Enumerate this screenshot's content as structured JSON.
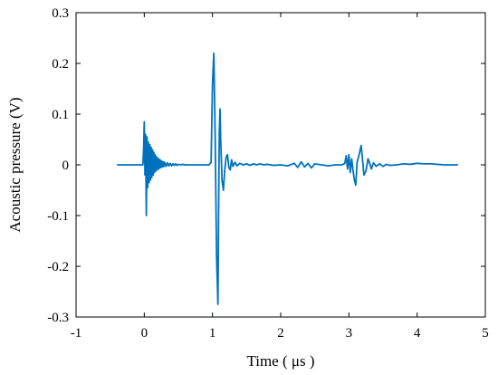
{
  "chart_data": {
    "type": "line",
    "title": "",
    "xlabel": "Time ( μs )",
    "ylabel": "Acoustic pressure (V)",
    "xlim": [
      -1,
      5
    ],
    "ylim": [
      -0.3,
      0.3
    ],
    "xticks": [
      -1,
      0,
      1,
      2,
      3,
      4,
      5
    ],
    "yticks": [
      -0.3,
      -0.2,
      -0.1,
      0,
      0.1,
      0.2,
      0.3
    ],
    "xtick_labels": [
      "-1",
      "0",
      "1",
      "2",
      "3",
      "4",
      "5"
    ],
    "ytick_labels": [
      "-0.3",
      "-0.2",
      "-0.1",
      "0",
      "0.1",
      "0.2",
      "0.3"
    ],
    "grid": false,
    "line_color": "#0072BD",
    "series": [
      {
        "x": [
          -0.4,
          -0.02,
          -0.01,
          0.0,
          0.01,
          0.02,
          0.03,
          0.04,
          0.05,
          0.06,
          0.07,
          0.08,
          0.09,
          0.1,
          0.11,
          0.12,
          0.13,
          0.14,
          0.15,
          0.16,
          0.17,
          0.18,
          0.19,
          0.2,
          0.21,
          0.22,
          0.23,
          0.24,
          0.25,
          0.26,
          0.27,
          0.28,
          0.29,
          0.3,
          0.32,
          0.34,
          0.36,
          0.38,
          0.4,
          0.42,
          0.44,
          0.46,
          0.48,
          0.5,
          0.53,
          0.56,
          0.6,
          0.65,
          0.7,
          0.75,
          0.8,
          0.85,
          0.9,
          0.95,
          0.98,
          1.0,
          1.02,
          1.04,
          1.06,
          1.08,
          1.09,
          1.1,
          1.11,
          1.12,
          1.14,
          1.16,
          1.18,
          1.2,
          1.22,
          1.24,
          1.26,
          1.28,
          1.3,
          1.33,
          1.36,
          1.4,
          1.45,
          1.5,
          1.55,
          1.6,
          1.65,
          1.7,
          1.75,
          1.8,
          1.85,
          1.9,
          2.0,
          2.1,
          2.2,
          2.25,
          2.3,
          2.35,
          2.4,
          2.45,
          2.5,
          2.6,
          2.7,
          2.8,
          2.9,
          2.94,
          2.96,
          2.98,
          3.0,
          3.02,
          3.04,
          3.06,
          3.08,
          3.1,
          3.12,
          3.15,
          3.18,
          3.2,
          3.22,
          3.25,
          3.28,
          3.3,
          3.33,
          3.36,
          3.4,
          3.45,
          3.5,
          3.55,
          3.6,
          3.7,
          3.8,
          3.9,
          4.0,
          4.1,
          4.2,
          4.3,
          4.4,
          4.5,
          4.6
        ],
        "y": [
          0.0,
          0.0,
          0.03,
          0.085,
          -0.02,
          0.06,
          -0.1,
          0.055,
          -0.045,
          0.045,
          -0.035,
          0.04,
          -0.03,
          0.035,
          -0.025,
          0.03,
          -0.02,
          0.025,
          -0.015,
          0.02,
          -0.012,
          0.016,
          -0.01,
          0.013,
          -0.008,
          0.011,
          -0.006,
          0.009,
          -0.005,
          0.007,
          -0.004,
          0.006,
          -0.003,
          0.005,
          -0.003,
          0.004,
          -0.002,
          0.003,
          -0.002,
          0.002,
          -0.001,
          0.002,
          -0.001,
          0.001,
          0.0,
          0.001,
          0.0,
          0.0,
          0.0,
          0.0,
          0.0,
          0.0,
          0.0,
          0.0,
          0.005,
          0.16,
          0.22,
          0.05,
          -0.18,
          -0.275,
          -0.08,
          0.06,
          0.11,
          0.05,
          -0.03,
          -0.05,
          -0.01,
          0.015,
          0.02,
          -0.005,
          -0.01,
          0.01,
          -0.003,
          0.005,
          -0.002,
          0.003,
          0.0,
          0.002,
          -0.001,
          0.002,
          0.0,
          0.002,
          0.0,
          0.001,
          0.0,
          -0.001,
          0.0,
          -0.002,
          0.003,
          -0.005,
          0.006,
          -0.004,
          0.003,
          -0.006,
          0.002,
          0.0,
          -0.002,
          0.0,
          0.0,
          0.003,
          0.018,
          -0.008,
          0.02,
          -0.015,
          0.012,
          -0.01,
          -0.03,
          -0.04,
          0.005,
          0.02,
          0.038,
          0.01,
          -0.02,
          -0.012,
          0.012,
          0.005,
          -0.008,
          0.004,
          -0.003,
          0.002,
          -0.003,
          0.001,
          -0.001,
          0.0,
          0.002,
          0.001,
          0.003,
          0.002,
          0.002,
          0.001,
          0.0,
          0.0,
          0.0
        ]
      }
    ]
  }
}
